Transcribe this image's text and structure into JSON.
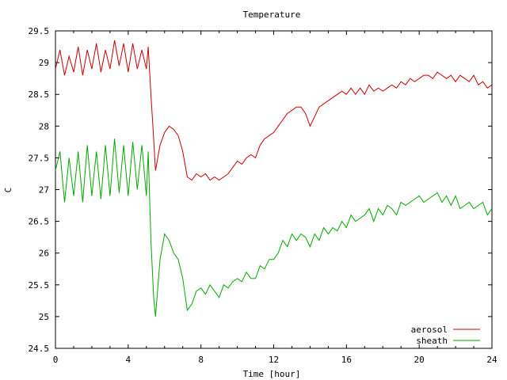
{
  "chart_data": {
    "type": "line",
    "title": "Temperature",
    "xlabel": "Time [hour]",
    "ylabel": "C",
    "xlim": [
      0,
      24
    ],
    "ylim": [
      24.5,
      29.5
    ],
    "x_ticks": [
      0,
      4,
      8,
      12,
      16,
      20,
      24
    ],
    "x_tick_labels": [
      "0",
      "4",
      "8",
      "12",
      "16",
      "20",
      "24"
    ],
    "y_ticks": [
      24.5,
      25,
      25.5,
      26,
      26.5,
      27,
      27.5,
      28,
      28.5,
      29,
      29.5
    ],
    "y_tick_labels": [
      "24.5",
      "25",
      "25.5",
      "26",
      "26.5",
      "27",
      "27.5",
      "28",
      "28.5",
      "29",
      "29.5"
    ],
    "grid": false,
    "legend_position": "bottom-right",
    "series": [
      {
        "name": "aerosol",
        "color": "#cc0000",
        "x": [
          0,
          0.25,
          0.5,
          0.75,
          1,
          1.25,
          1.5,
          1.75,
          2,
          2.25,
          2.5,
          2.75,
          3,
          3.25,
          3.5,
          3.75,
          4,
          4.25,
          4.5,
          4.75,
          5,
          5.1,
          5.25,
          5.4,
          5.5,
          5.75,
          6,
          6.25,
          6.5,
          6.75,
          7,
          7.25,
          7.5,
          7.75,
          8,
          8.25,
          8.5,
          8.75,
          9,
          9.25,
          9.5,
          9.75,
          10,
          10.25,
          10.5,
          10.75,
          11,
          11.25,
          11.5,
          11.75,
          12,
          12.25,
          12.5,
          12.75,
          13,
          13.25,
          13.5,
          13.75,
          14,
          14.25,
          14.5,
          14.75,
          15,
          15.25,
          15.5,
          15.75,
          16,
          16.25,
          16.5,
          16.75,
          17,
          17.25,
          17.5,
          17.75,
          18,
          18.25,
          18.5,
          18.75,
          19,
          19.25,
          19.5,
          19.75,
          20,
          20.25,
          20.5,
          20.75,
          21,
          21.25,
          21.5,
          21.75,
          22,
          22.25,
          22.5,
          22.75,
          23,
          23.25,
          23.5,
          23.75,
          24
        ],
        "y": [
          28.9,
          29.2,
          28.8,
          29.1,
          28.85,
          29.25,
          28.8,
          29.2,
          28.9,
          29.3,
          28.85,
          29.2,
          28.9,
          29.35,
          28.95,
          29.3,
          28.85,
          29.3,
          28.9,
          29.2,
          28.9,
          29.25,
          28.5,
          27.8,
          27.3,
          27.7,
          27.9,
          28.0,
          27.95,
          27.85,
          27.6,
          27.2,
          27.15,
          27.25,
          27.2,
          27.25,
          27.15,
          27.2,
          27.15,
          27.2,
          27.25,
          27.35,
          27.45,
          27.4,
          27.5,
          27.55,
          27.5,
          27.7,
          27.8,
          27.85,
          27.9,
          28.0,
          28.1,
          28.2,
          28.25,
          28.3,
          28.3,
          28.2,
          28.0,
          28.15,
          28.3,
          28.35,
          28.4,
          28.45,
          28.5,
          28.55,
          28.5,
          28.6,
          28.5,
          28.6,
          28.5,
          28.65,
          28.55,
          28.6,
          28.55,
          28.6,
          28.65,
          28.6,
          28.7,
          28.65,
          28.75,
          28.7,
          28.75,
          28.8,
          28.8,
          28.75,
          28.85,
          28.8,
          28.75,
          28.8,
          28.7,
          28.8,
          28.75,
          28.7,
          28.8,
          28.65,
          28.7,
          28.6,
          28.65
        ]
      },
      {
        "name": "sheath",
        "color": "#00aa00",
        "x": [
          0,
          0.25,
          0.5,
          0.75,
          1,
          1.25,
          1.5,
          1.75,
          2,
          2.25,
          2.5,
          2.75,
          3,
          3.25,
          3.5,
          3.75,
          4,
          4.25,
          4.5,
          4.75,
          5,
          5.1,
          5.25,
          5.4,
          5.5,
          5.75,
          6,
          6.25,
          6.5,
          6.75,
          7,
          7.25,
          7.5,
          7.75,
          8,
          8.25,
          8.5,
          8.75,
          9,
          9.25,
          9.5,
          9.75,
          10,
          10.25,
          10.5,
          10.75,
          11,
          11.25,
          11.5,
          11.75,
          12,
          12.25,
          12.5,
          12.75,
          13,
          13.25,
          13.5,
          13.75,
          14,
          14.25,
          14.5,
          14.75,
          15,
          15.25,
          15.5,
          15.75,
          16,
          16.25,
          16.5,
          16.75,
          17,
          17.25,
          17.5,
          17.75,
          18,
          18.25,
          18.5,
          18.75,
          19,
          19.25,
          19.5,
          19.75,
          20,
          20.25,
          20.5,
          20.75,
          21,
          21.25,
          21.5,
          21.75,
          22,
          22.25,
          22.5,
          22.75,
          23,
          23.25,
          23.5,
          23.75,
          24
        ],
        "y": [
          27.3,
          27.6,
          26.8,
          27.5,
          26.9,
          27.6,
          26.8,
          27.7,
          26.9,
          27.6,
          26.85,
          27.7,
          26.9,
          27.8,
          26.95,
          27.7,
          26.9,
          27.75,
          27.0,
          27.7,
          26.9,
          27.6,
          26.2,
          25.3,
          25.0,
          25.9,
          26.3,
          26.2,
          26.0,
          25.9,
          25.6,
          25.1,
          25.2,
          25.4,
          25.45,
          25.35,
          25.5,
          25.4,
          25.3,
          25.5,
          25.45,
          25.55,
          25.6,
          25.55,
          25.7,
          25.6,
          25.6,
          25.8,
          25.75,
          25.9,
          25.9,
          26.0,
          26.2,
          26.1,
          26.3,
          26.2,
          26.3,
          26.25,
          26.1,
          26.3,
          26.2,
          26.4,
          26.3,
          26.4,
          26.35,
          26.5,
          26.4,
          26.6,
          26.5,
          26.55,
          26.6,
          26.7,
          26.5,
          26.7,
          26.6,
          26.75,
          26.7,
          26.6,
          26.8,
          26.75,
          26.8,
          26.85,
          26.9,
          26.8,
          26.85,
          26.9,
          26.95,
          26.8,
          26.9,
          26.75,
          26.9,
          26.7,
          26.75,
          26.8,
          26.7,
          26.75,
          26.8,
          26.6,
          26.7
        ]
      }
    ]
  }
}
